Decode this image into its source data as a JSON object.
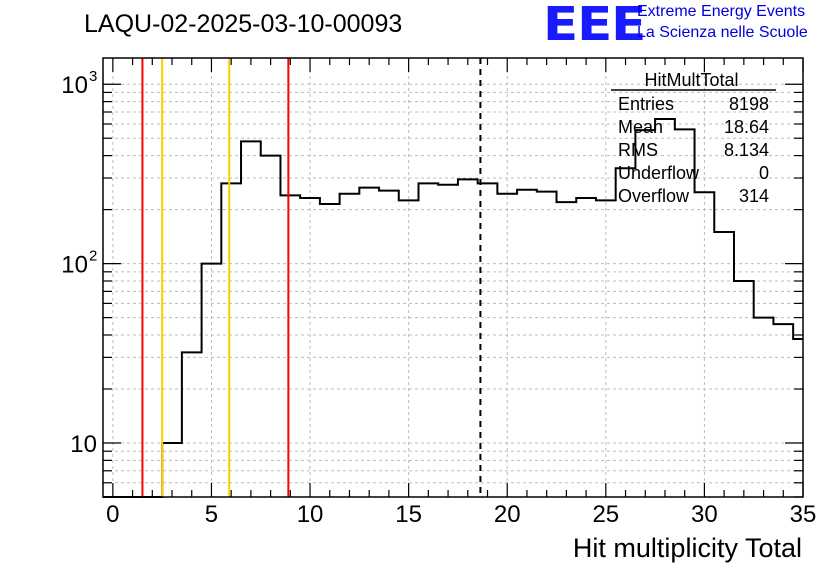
{
  "header": {
    "run_title": "LAQU-02-2025-03-10-00093",
    "logo_text": "EEE",
    "logo_line1": "Extreme Energy Events",
    "logo_line2": "La Scienza nelle Scuole"
  },
  "chart_data": {
    "type": "histogram",
    "scale_y": "log",
    "xlabel": "Hit multiplicity Total",
    "ylabel": "",
    "xlim": [
      -0.5,
      35
    ],
    "ylim": [
      5,
      1400
    ],
    "grid": true,
    "x_ticks": [
      0,
      5,
      10,
      15,
      20,
      25,
      30,
      35
    ],
    "y_ticks": [
      {
        "value": 10,
        "label": "10"
      },
      {
        "value": 100,
        "label": "10",
        "exp": "2"
      },
      {
        "value": 1000,
        "label": "10",
        "exp": "3"
      }
    ],
    "bin_edges": [
      -0.5,
      0.5,
      1.5,
      2.5,
      3.5,
      4.5,
      5.5,
      6.5,
      7.5,
      8.5,
      9.5,
      10.5,
      11.5,
      12.5,
      13.5,
      14.5,
      15.5,
      16.5,
      17.5,
      18.5,
      19.5,
      20.5,
      21.5,
      22.5,
      23.5,
      24.5,
      25.5,
      26.5,
      27.5,
      28.5,
      29.5,
      30.5,
      31.5,
      32.5,
      33.5,
      34.5,
      35
    ],
    "counts": [
      0,
      0,
      0,
      10,
      32,
      100,
      280,
      480,
      400,
      240,
      232,
      215,
      245,
      265,
      255,
      225,
      280,
      275,
      295,
      280,
      245,
      258,
      252,
      220,
      232,
      225,
      340,
      555,
      640,
      560,
      250,
      150,
      80,
      50,
      46,
      38
    ],
    "vertical_lines": [
      {
        "x": 1.5,
        "color": "#ff0000",
        "style": "solid"
      },
      {
        "x": 2.5,
        "color": "#ffcc00",
        "style": "solid"
      },
      {
        "x": 5.9,
        "color": "#ffcc00",
        "style": "solid"
      },
      {
        "x": 8.9,
        "color": "#ff0000",
        "style": "solid"
      },
      {
        "x": 18.64,
        "color": "#000000",
        "style": "dashed"
      }
    ],
    "stats_box": {
      "title": "HitMultTotal",
      "rows": [
        {
          "label": "Entries",
          "value": "8198"
        },
        {
          "label": "Mean",
          "value": "18.64"
        },
        {
          "label": "RMS",
          "value": "8.134"
        },
        {
          "label": "Underflow",
          "value": "0"
        },
        {
          "label": "Overflow",
          "value": "314"
        }
      ]
    }
  }
}
